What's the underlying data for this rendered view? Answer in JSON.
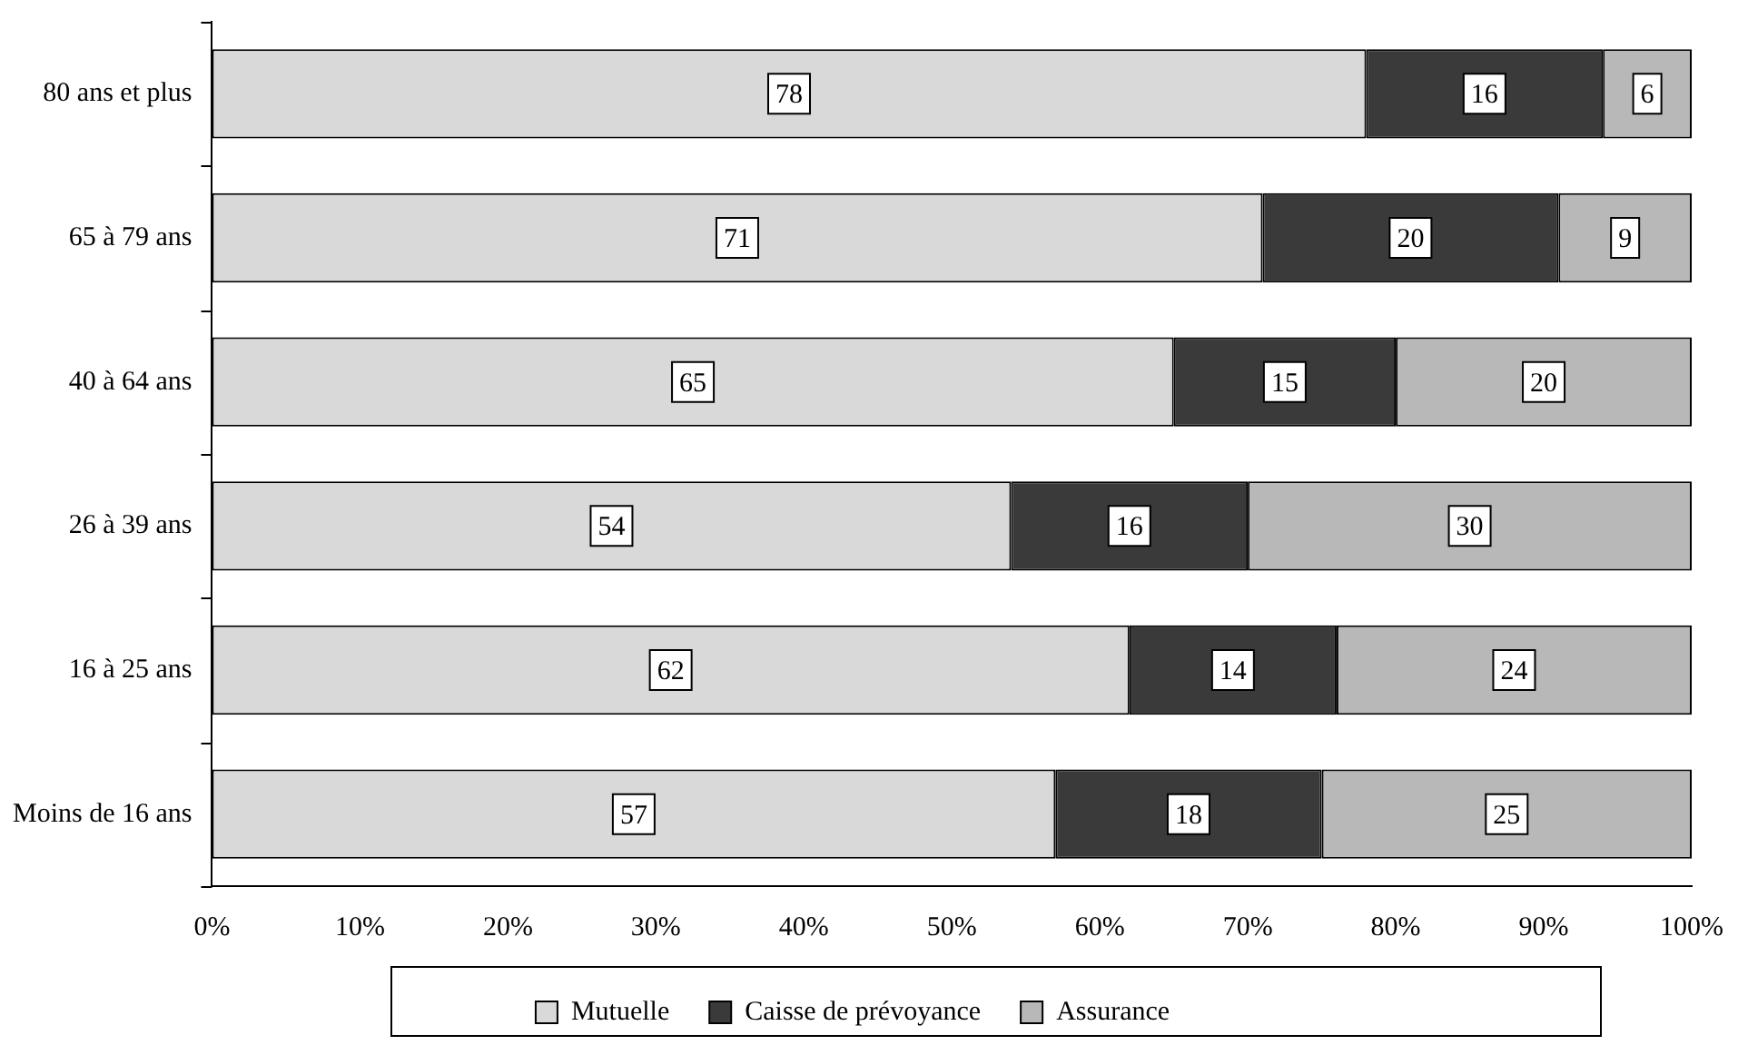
{
  "chart_data": {
    "type": "bar",
    "orientation": "horizontal",
    "stacked": true,
    "categories": [
      "80 ans et plus",
      "65 à 79 ans",
      "40 à 64 ans",
      "26 à 39 ans",
      "16 à 25 ans",
      "Moins de 16 ans"
    ],
    "series": [
      {
        "name": "Mutuelle",
        "color": "#d9d9d9",
        "values": [
          78,
          71,
          65,
          54,
          62,
          57
        ]
      },
      {
        "name": "Caisse de prévoyance",
        "color": "#3a3a3a",
        "values": [
          16,
          20,
          15,
          16,
          14,
          18
        ]
      },
      {
        "name": "Assurance",
        "color": "#b8b8b8",
        "values": [
          6,
          9,
          20,
          30,
          24,
          25
        ]
      }
    ],
    "xlim": [
      0,
      100
    ],
    "xticks": [
      {
        "value": 0,
        "label": "0%"
      },
      {
        "value": 10,
        "label": "10%"
      },
      {
        "value": 20,
        "label": "20%"
      },
      {
        "value": 30,
        "label": "30%"
      },
      {
        "value": 40,
        "label": "40%"
      },
      {
        "value": 50,
        "label": "50%"
      },
      {
        "value": 60,
        "label": "60%"
      },
      {
        "value": 70,
        "label": "70%"
      },
      {
        "value": 80,
        "label": "80%"
      },
      {
        "value": 90,
        "label": "90%"
      },
      {
        "value": 100,
        "label": "100%"
      }
    ],
    "data_labels": true,
    "legend": "bottom",
    "grid": false
  }
}
